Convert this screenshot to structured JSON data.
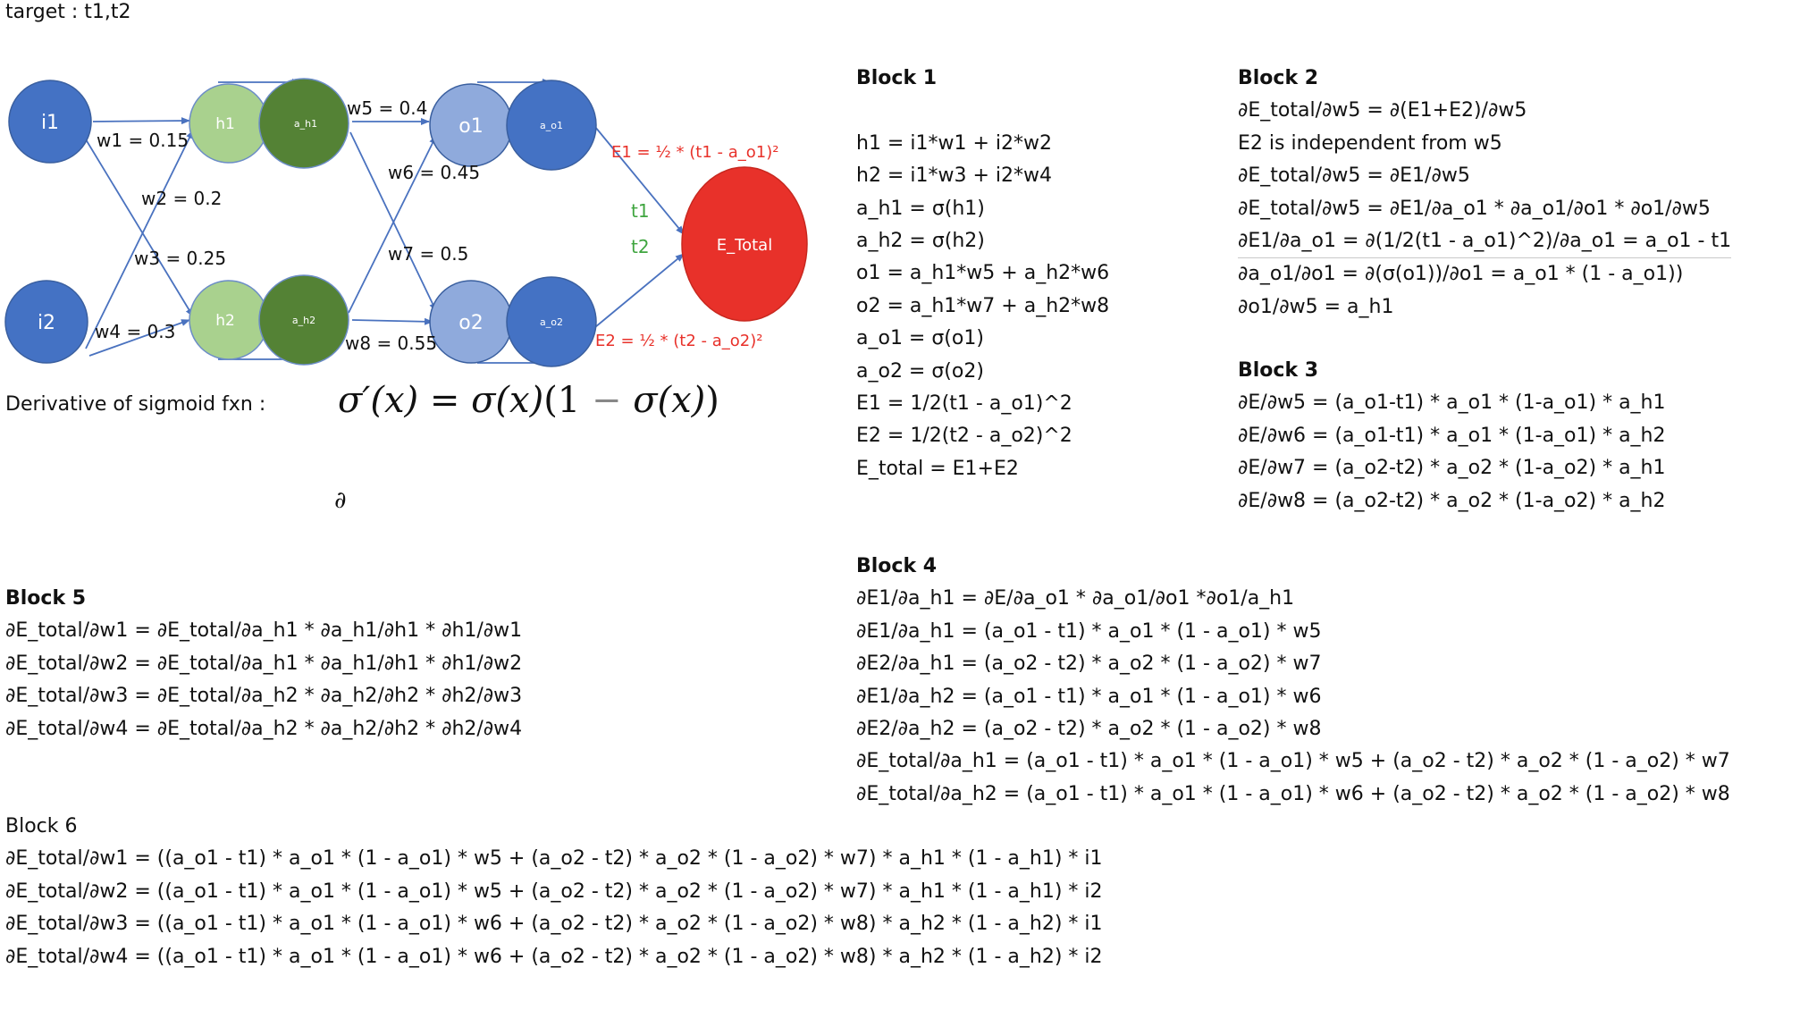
{
  "target_label": "target : t1,t2",
  "diagram": {
    "nodes": {
      "i1": "i1",
      "i2": "i2",
      "h1": "h1",
      "a_h1": "a_h1",
      "h2": "h2",
      "a_h2": "a_h2",
      "o1": "o1",
      "a_o1": "a_o1",
      "o2": "o2",
      "a_o2": "a_o2",
      "e_total": "E_Total"
    },
    "weights": {
      "w1": "w1 = 0.15",
      "w2": "w2 = 0.2",
      "w3": "w3 = 0.25",
      "w4": "w4 = 0.3",
      "w5": "w5 = 0.4",
      "w6": "w6 = 0.45",
      "w7": "w7 = 0.5",
      "w8": "w8 = 0.55"
    },
    "errors": {
      "e1": "E1 = ½ * (t1 - a_o1)²",
      "e2": "E2 = ½ * (t2 - a_o2)²"
    },
    "targets": {
      "t1": "t1",
      "t2": "t2"
    },
    "colors": {
      "input": "#4472c4",
      "hidden_pre": "#a9d18e",
      "hidden_act": "#548235",
      "output_pre": "#8faadc",
      "output_act": "#4472c4",
      "error_node": "#e8312a",
      "error_text": "#e8312a",
      "target_text": "#3fa53f",
      "edge": "#4a72bf"
    }
  },
  "sigmoid": {
    "label": "Derivative of sigmoid fxn :",
    "formula": {
      "lhs": "σ′(x)",
      "eq": " = ",
      "f1": "σ(x)",
      "open": "(1 ",
      "minus": "−",
      "f2": " σ(x)",
      "close": ")"
    },
    "partial_symbol": "∂"
  },
  "blocks": {
    "block1": {
      "title": "Block 1",
      "lines": [
        "h1 = i1*w1 + i2*w2",
        "h2 = i1*w3 + i2*w4",
        "a_h1 = σ(h1)",
        "a_h2 = σ(h2)",
        "o1 = a_h1*w5 + a_h2*w6",
        "o2 = a_h1*w7 + a_h2*w8",
        "a_o1 = σ(o1)",
        "a_o2 = σ(o2)",
        "E1 = 1/2(t1 - a_o1)^2",
        "E2 = 1/2(t2 - a_o2)^2",
        "E_total = E1+E2"
      ]
    },
    "block2": {
      "title": "Block 2",
      "lines": [
        "∂E_total/∂w5 = ∂(E1+E2)/∂w5",
        "E2 is independent from w5",
        "∂E_total/∂w5 = ∂E1/∂w5",
        "∂E_total/∂w5 = ∂E1/∂a_o1 * ∂a_o1/∂o1 * ∂o1/∂w5",
        "∂E1/∂a_o1 = ∂(1/2(t1 - a_o1)^2)/∂a_o1 = a_o1 - t1",
        "∂a_o1/∂o1 =  ∂(σ(o1))/∂o1 = a_o1 * (1 - a_o1))",
        "∂o1/∂w5 = a_h1"
      ]
    },
    "block3": {
      "title": "Block 3",
      "lines": [
        "∂E/∂w5 = (a_o1-t1) * a_o1 * (1-a_o1) * a_h1",
        "∂E/∂w6 = (a_o1-t1) * a_o1 * (1-a_o1) * a_h2",
        "∂E/∂w7 = (a_o2-t2) * a_o2 * (1-a_o2) * a_h1",
        "∂E/∂w8 = (a_o2-t2) * a_o2 * (1-a_o2) * a_h2"
      ]
    },
    "block4": {
      "title": "Block 4",
      "lines": [
        "∂E1/∂a_h1 = ∂E/∂a_o1 * ∂a_o1/∂o1 *∂o1/a_h1",
        "∂E1/∂a_h1 = (a_o1 - t1) * a_o1 * (1 - a_o1) * w5",
        "∂E2/∂a_h1 = (a_o2 - t2) * a_o2 * (1 - a_o2) * w7",
        "∂E1/∂a_h2 = (a_o1 - t1) * a_o1 * (1 - a_o1) * w6",
        "∂E2/∂a_h2 = (a_o2 - t2) * a_o2 * (1 - a_o2) * w8",
        "∂E_total/∂a_h1 = (a_o1 - t1) * a_o1 * (1 - a_o1) * w5 +  (a_o2 - t2) * a_o2 * (1 - a_o2) * w7",
        "∂E_total/∂a_h2 = (a_o1 - t1) * a_o1 * (1 - a_o1) * w6 +  (a_o2 - t2) * a_o2 * (1 - a_o2) * w8"
      ]
    },
    "block5": {
      "title": "Block 5",
      "lines": [
        "∂E_total/∂w1 = ∂E_total/∂a_h1 * ∂a_h1/∂h1 * ∂h1/∂w1",
        "∂E_total/∂w2 = ∂E_total/∂a_h1 * ∂a_h1/∂h1 * ∂h1/∂w2",
        "∂E_total/∂w3 = ∂E_total/∂a_h2 * ∂a_h2/∂h2 * ∂h2/∂w3",
        "∂E_total/∂w4 = ∂E_total/∂a_h2 * ∂a_h2/∂h2 * ∂h2/∂w4"
      ]
    },
    "block6": {
      "title": "Block 6",
      "lines": [
        "∂E_total/∂w1 = ((a_o1 - t1) * a_o1 * (1 - a_o1) * w5 +  (a_o2 - t2) * a_o2 * (1 - a_o2) * w7) * a_h1 * (1 - a_h1) * i1",
        "∂E_total/∂w2 = ((a_o1 - t1) * a_o1 * (1 - a_o1) * w5 +  (a_o2 - t2) * a_o2 * (1 - a_o2) * w7) * a_h1 * (1 - a_h1) * i2",
        "∂E_total/∂w3 = ((a_o1 - t1) * a_o1 * (1 - a_o1) * w6 + (a_o2 - t2) * a_o2 * (1 - a_o2) * w8) * a_h2 * (1 - a_h2) * i1",
        "∂E_total/∂w4 = ((a_o1 - t1) * a_o1 * (1 - a_o1) * w6 +  (a_o2 - t2) * a_o2 * (1 - a_o2) * w8) * a_h2 * (1 - a_h2) * i2"
      ]
    }
  }
}
